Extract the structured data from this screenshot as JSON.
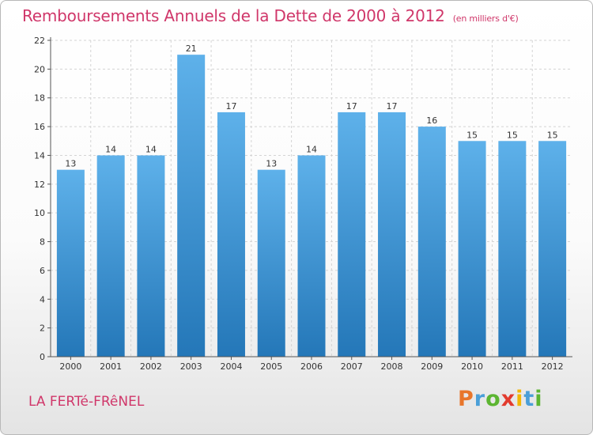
{
  "header": {
    "title": "Remboursements Annuels de la Dette de 2000 à 2012",
    "unit": "(en milliers d'€)"
  },
  "footer": {
    "place": "LA FERTé-FRêNEL",
    "logo": {
      "text": "Proxiti",
      "letter_colors": [
        "#e8762b",
        "#4a9fd8",
        "#5cb531",
        "#e23b2e",
        "#f2b705",
        "#4a9fd8",
        "#5cb531"
      ]
    }
  },
  "chart_data": {
    "type": "bar",
    "categories": [
      "2000",
      "2001",
      "2002",
      "2003",
      "2004",
      "2005",
      "2006",
      "2007",
      "2008",
      "2009",
      "2010",
      "2011",
      "2012"
    ],
    "values": [
      13,
      14,
      14,
      21,
      17,
      13,
      14,
      17,
      17,
      16,
      15,
      15,
      15
    ],
    "ylim": [
      0,
      22
    ],
    "yticks": [
      0,
      2,
      4,
      6,
      8,
      10,
      12,
      14,
      16,
      18,
      20,
      22
    ],
    "grid": true,
    "colors": {
      "bar_top": "#5eb1ea",
      "bar_bottom": "#2477b8",
      "grid": "#d4d4d4",
      "axis": "#555555",
      "text": "#333333"
    }
  }
}
